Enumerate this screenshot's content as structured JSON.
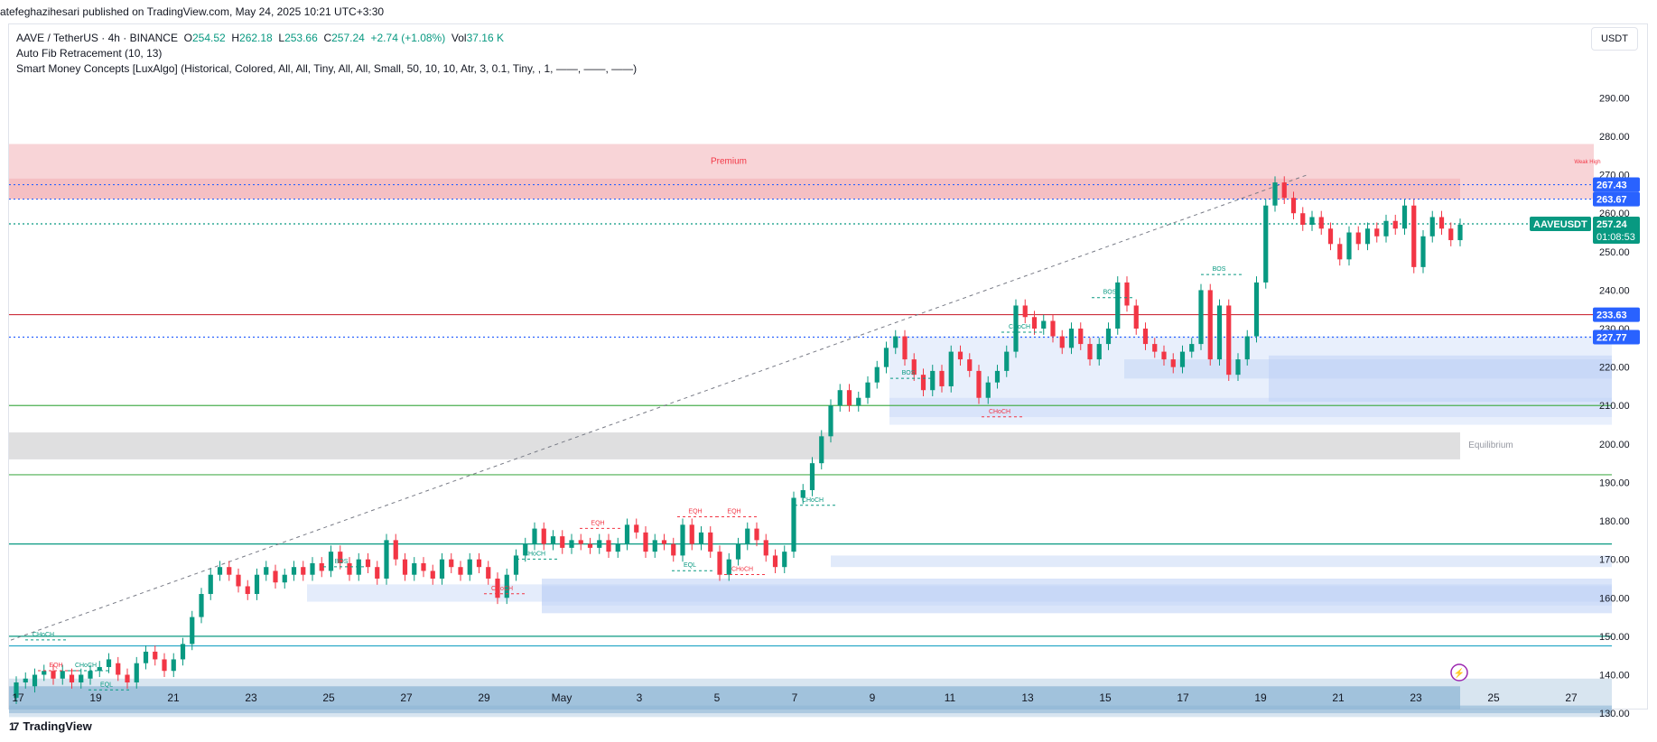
{
  "header": {
    "published": "atefeghazihesari published on TradingView.com, May 24, 2025 10:21 UTC+3:30"
  },
  "legend": {
    "symbol": "AAVE / TetherUS · 4h · BINANCE",
    "o_label": "O",
    "o": "254.52",
    "h_label": "H",
    "h": "262.18",
    "l_label": "L",
    "l": "253.66",
    "c_label": "C",
    "c": "257.24",
    "change": "+2.74 (+1.08%)",
    "vol_label": "Vol",
    "vol": "37.16 K",
    "indicator1": "Auto Fib Retracement (10, 13)",
    "indicator2": "Smart Money Concepts [LuxAlgo] (Historical, Colored, All, All, Tiny, All, All, Small, 50, 10, 10, Atr, 3, 0.1, Tiny, , 1, ——, ——, ——)"
  },
  "currency_button": "USDT",
  "brand": "TradingView",
  "brand_logo": "17",
  "colors": {
    "up": "#089981",
    "down": "#f23645",
    "premium": "#f5c6c9",
    "demand": "#bcd0f5",
    "equilibrium": "#d9d9db",
    "deep": "#8fb5d5",
    "fib_blue": "#2962ff",
    "fib_red": "#cc2f3c",
    "green_line": "#4caf50"
  },
  "chart_data": {
    "type": "candlestick",
    "title": "AAVE / TetherUS · 4h · BINANCE",
    "ylim": [
      125,
      295
    ],
    "y_ticks": [
      "290.00",
      "280.00",
      "270.00",
      "260.00",
      "250.00",
      "240.00",
      "230.00",
      "220.00",
      "210.00",
      "200.00",
      "190.00",
      "180.00",
      "170.00",
      "160.00",
      "150.00",
      "140.00",
      "130.00"
    ],
    "x_ticks": [
      "17",
      "19",
      "21",
      "23",
      "25",
      "27",
      "29",
      "May",
      "3",
      "5",
      "7",
      "9",
      "11",
      "13",
      "15",
      "17",
      "19",
      "21",
      "23",
      "25",
      "27"
    ],
    "series": [
      {
        "candles": [
          {
            "o": 134,
            "c": 138
          },
          {
            "o": 138,
            "c": 139
          },
          {
            "o": 137,
            "c": 140
          },
          {
            "o": 140,
            "c": 141
          },
          {
            "o": 141,
            "c": 139
          },
          {
            "o": 139,
            "c": 141
          },
          {
            "o": 140,
            "c": 138
          },
          {
            "o": 138,
            "c": 140
          },
          {
            "o": 139,
            "c": 141
          },
          {
            "o": 141,
            "c": 142
          },
          {
            "o": 142,
            "c": 144
          },
          {
            "o": 143,
            "c": 140
          },
          {
            "o": 140,
            "c": 138
          },
          {
            "o": 138,
            "c": 143
          },
          {
            "o": 143,
            "c": 146
          },
          {
            "o": 146,
            "c": 144
          },
          {
            "o": 144,
            "c": 141
          },
          {
            "o": 141,
            "c": 144
          },
          {
            "o": 144,
            "c": 148
          },
          {
            "o": 148,
            "c": 155
          },
          {
            "o": 155,
            "c": 161
          },
          {
            "o": 161,
            "c": 166
          },
          {
            "o": 166,
            "c": 168
          },
          {
            "o": 168,
            "c": 166
          },
          {
            "o": 166,
            "c": 163
          },
          {
            "o": 163,
            "c": 161
          },
          {
            "o": 161,
            "c": 166
          },
          {
            "o": 166,
            "c": 168
          },
          {
            "o": 167,
            "c": 164
          },
          {
            "o": 164,
            "c": 166
          },
          {
            "o": 166,
            "c": 168
          },
          {
            "o": 168,
            "c": 166
          },
          {
            "o": 166,
            "c": 169
          },
          {
            "o": 169,
            "c": 167
          },
          {
            "o": 167,
            "c": 172
          },
          {
            "o": 172,
            "c": 169
          },
          {
            "o": 169,
            "c": 166
          },
          {
            "o": 166,
            "c": 170
          },
          {
            "o": 170,
            "c": 168
          },
          {
            "o": 168,
            "c": 165
          },
          {
            "o": 165,
            "c": 175
          },
          {
            "o": 175,
            "c": 170
          },
          {
            "o": 170,
            "c": 166
          },
          {
            "o": 166,
            "c": 169
          },
          {
            "o": 169,
            "c": 167
          },
          {
            "o": 167,
            "c": 165
          },
          {
            "o": 165,
            "c": 170
          },
          {
            "o": 170,
            "c": 168
          },
          {
            "o": 168,
            "c": 166
          },
          {
            "o": 166,
            "c": 170
          },
          {
            "o": 170,
            "c": 168
          },
          {
            "o": 168,
            "c": 165
          },
          {
            "o": 165,
            "c": 160
          },
          {
            "o": 160,
            "c": 166
          },
          {
            "o": 166,
            "c": 171
          },
          {
            "o": 171,
            "c": 174
          },
          {
            "o": 174,
            "c": 178
          },
          {
            "o": 178,
            "c": 174
          },
          {
            "o": 174,
            "c": 176
          },
          {
            "o": 176,
            "c": 173
          },
          {
            "o": 173,
            "c": 175
          },
          {
            "o": 175,
            "c": 174
          },
          {
            "o": 174,
            "c": 173
          },
          {
            "o": 173,
            "c": 175
          },
          {
            "o": 175,
            "c": 172
          },
          {
            "o": 172,
            "c": 174
          },
          {
            "o": 174,
            "c": 179
          },
          {
            "o": 179,
            "c": 177
          },
          {
            "o": 177,
            "c": 172
          },
          {
            "o": 172,
            "c": 175
          },
          {
            "o": 175,
            "c": 174
          },
          {
            "o": 174,
            "c": 171
          },
          {
            "o": 171,
            "c": 179
          },
          {
            "o": 179,
            "c": 174
          },
          {
            "o": 174,
            "c": 177
          },
          {
            "o": 177,
            "c": 172
          },
          {
            "o": 172,
            "c": 166
          },
          {
            "o": 166,
            "c": 170
          },
          {
            "o": 170,
            "c": 174
          },
          {
            "o": 174,
            "c": 178
          },
          {
            "o": 178,
            "c": 175
          },
          {
            "o": 175,
            "c": 171
          },
          {
            "o": 171,
            "c": 168
          },
          {
            "o": 168,
            "c": 172
          },
          {
            "o": 172,
            "c": 186
          },
          {
            "o": 186,
            "c": 188
          },
          {
            "o": 188,
            "c": 195
          },
          {
            "o": 195,
            "c": 202
          },
          {
            "o": 202,
            "c": 210
          },
          {
            "o": 210,
            "c": 214
          },
          {
            "o": 214,
            "c": 210
          },
          {
            "o": 210,
            "c": 212
          },
          {
            "o": 212,
            "c": 216
          },
          {
            "o": 216,
            "c": 220
          },
          {
            "o": 220,
            "c": 225
          },
          {
            "o": 225,
            "c": 228
          },
          {
            "o": 228,
            "c": 222
          },
          {
            "o": 222,
            "c": 218
          },
          {
            "o": 218,
            "c": 214
          },
          {
            "o": 214,
            "c": 219
          },
          {
            "o": 219,
            "c": 215
          },
          {
            "o": 215,
            "c": 224
          },
          {
            "o": 224,
            "c": 222
          },
          {
            "o": 222,
            "c": 219
          },
          {
            "o": 219,
            "c": 212
          },
          {
            "o": 212,
            "c": 216
          },
          {
            "o": 216,
            "c": 219
          },
          {
            "o": 219,
            "c": 224
          },
          {
            "o": 224,
            "c": 236
          },
          {
            "o": 236,
            "c": 233
          },
          {
            "o": 233,
            "c": 230
          },
          {
            "o": 230,
            "c": 232
          },
          {
            "o": 232,
            "c": 228
          },
          {
            "o": 228,
            "c": 225
          },
          {
            "o": 225,
            "c": 230
          },
          {
            "o": 230,
            "c": 226
          },
          {
            "o": 226,
            "c": 222
          },
          {
            "o": 222,
            "c": 226
          },
          {
            "o": 226,
            "c": 230
          },
          {
            "o": 230,
            "c": 242
          },
          {
            "o": 242,
            "c": 236
          },
          {
            "o": 236,
            "c": 230
          },
          {
            "o": 230,
            "c": 226
          },
          {
            "o": 226,
            "c": 224
          },
          {
            "o": 224,
            "c": 222
          },
          {
            "o": 222,
            "c": 220
          },
          {
            "o": 220,
            "c": 224
          },
          {
            "o": 224,
            "c": 226
          },
          {
            "o": 226,
            "c": 240
          },
          {
            "o": 240,
            "c": 222
          },
          {
            "o": 222,
            "c": 236
          },
          {
            "o": 236,
            "c": 218
          },
          {
            "o": 218,
            "c": 222
          },
          {
            "o": 222,
            "c": 228
          },
          {
            "o": 228,
            "c": 242
          },
          {
            "o": 242,
            "c": 262
          },
          {
            "o": 262,
            "c": 268
          },
          {
            "o": 268,
            "c": 264
          },
          {
            "o": 264,
            "c": 260
          },
          {
            "o": 260,
            "c": 257
          },
          {
            "o": 257,
            "c": 259
          },
          {
            "o": 259,
            "c": 256
          },
          {
            "o": 256,
            "c": 252
          },
          {
            "o": 252,
            "c": 248
          },
          {
            "o": 248,
            "c": 255
          },
          {
            "o": 255,
            "c": 252
          },
          {
            "o": 252,
            "c": 256
          },
          {
            "o": 256,
            "c": 254
          },
          {
            "o": 254,
            "c": 258
          },
          {
            "o": 258,
            "c": 256
          },
          {
            "o": 256,
            "c": 262
          },
          {
            "o": 262,
            "c": 246
          },
          {
            "o": 246,
            "c": 254
          },
          {
            "o": 254,
            "c": 259
          },
          {
            "o": 259,
            "c": 256
          },
          {
            "o": 256,
            "c": 253
          },
          {
            "o": 253,
            "c": 257
          }
        ]
      }
    ],
    "price_labels": [
      {
        "text": "267.43",
        "value": 267.43,
        "color": "#2962ff"
      },
      {
        "text": "263.67",
        "value": 263.67,
        "color": "#2962ff"
      },
      {
        "text": "233.63",
        "value": 233.63,
        "color": "#2962ff"
      },
      {
        "text": "227.77",
        "value": 227.77,
        "color": "#2962ff"
      }
    ],
    "current": {
      "symbol": "AAVEUSDT",
      "price": "257.24",
      "countdown": "01:08:53",
      "value": 257.24
    },
    "zones": {
      "premium": {
        "label": "Premium",
        "top": 278,
        "bottom": 263.67
      },
      "equilibrium": {
        "label": "Equilibrium",
        "top": 203,
        "bottom": 196
      },
      "premium_tag": "Weak High"
    },
    "hlines": [
      {
        "value": 267.43,
        "style": "dotted",
        "color": "#2962ff"
      },
      {
        "value": 263.67,
        "style": "dotted",
        "color": "#2962ff"
      },
      {
        "value": 257.24,
        "style": "dotted",
        "color": "#089981"
      },
      {
        "value": 233.63,
        "style": "solid",
        "color": "#cc2f3c"
      },
      {
        "value": 227.77,
        "style": "dotted",
        "color": "#2962ff"
      },
      {
        "value": 210,
        "style": "solid",
        "color": "#4caf50"
      },
      {
        "value": 192,
        "style": "solid",
        "color": "#4caf50"
      },
      {
        "value": 174,
        "style": "solid",
        "color": "#089981"
      },
      {
        "value": 150,
        "style": "solid",
        "color": "#089981"
      },
      {
        "value": 147.5,
        "style": "solid",
        "color": "#2aa8c7"
      }
    ],
    "smc_labels": [
      {
        "text": "CHoCH",
        "color": "#089981"
      },
      {
        "text": "EQH",
        "color": "#f23645"
      },
      {
        "text": "CHoCH",
        "color": "#089981"
      },
      {
        "text": "EQL",
        "color": "#089981"
      },
      {
        "text": "BOS",
        "color": "#089981"
      },
      {
        "text": "CHoCH",
        "color": "#089981"
      },
      {
        "text": "CHoCH",
        "color": "#f23645"
      },
      {
        "text": "EQH",
        "color": "#f23645"
      },
      {
        "text": "EQH",
        "color": "#f23645"
      },
      {
        "text": "EQH",
        "color": "#f23645"
      },
      {
        "text": "EQL",
        "color": "#089981"
      },
      {
        "text": "CHoCH",
        "color": "#f23645"
      },
      {
        "text": "CHoCH",
        "color": "#089981"
      },
      {
        "text": "BOS",
        "color": "#089981"
      },
      {
        "text": "CHoCH",
        "color": "#089981"
      },
      {
        "text": "CHoCH",
        "color": "#f23645"
      },
      {
        "text": "BOS",
        "color": "#089981"
      },
      {
        "text": "BOS",
        "color": "#089981"
      }
    ]
  }
}
